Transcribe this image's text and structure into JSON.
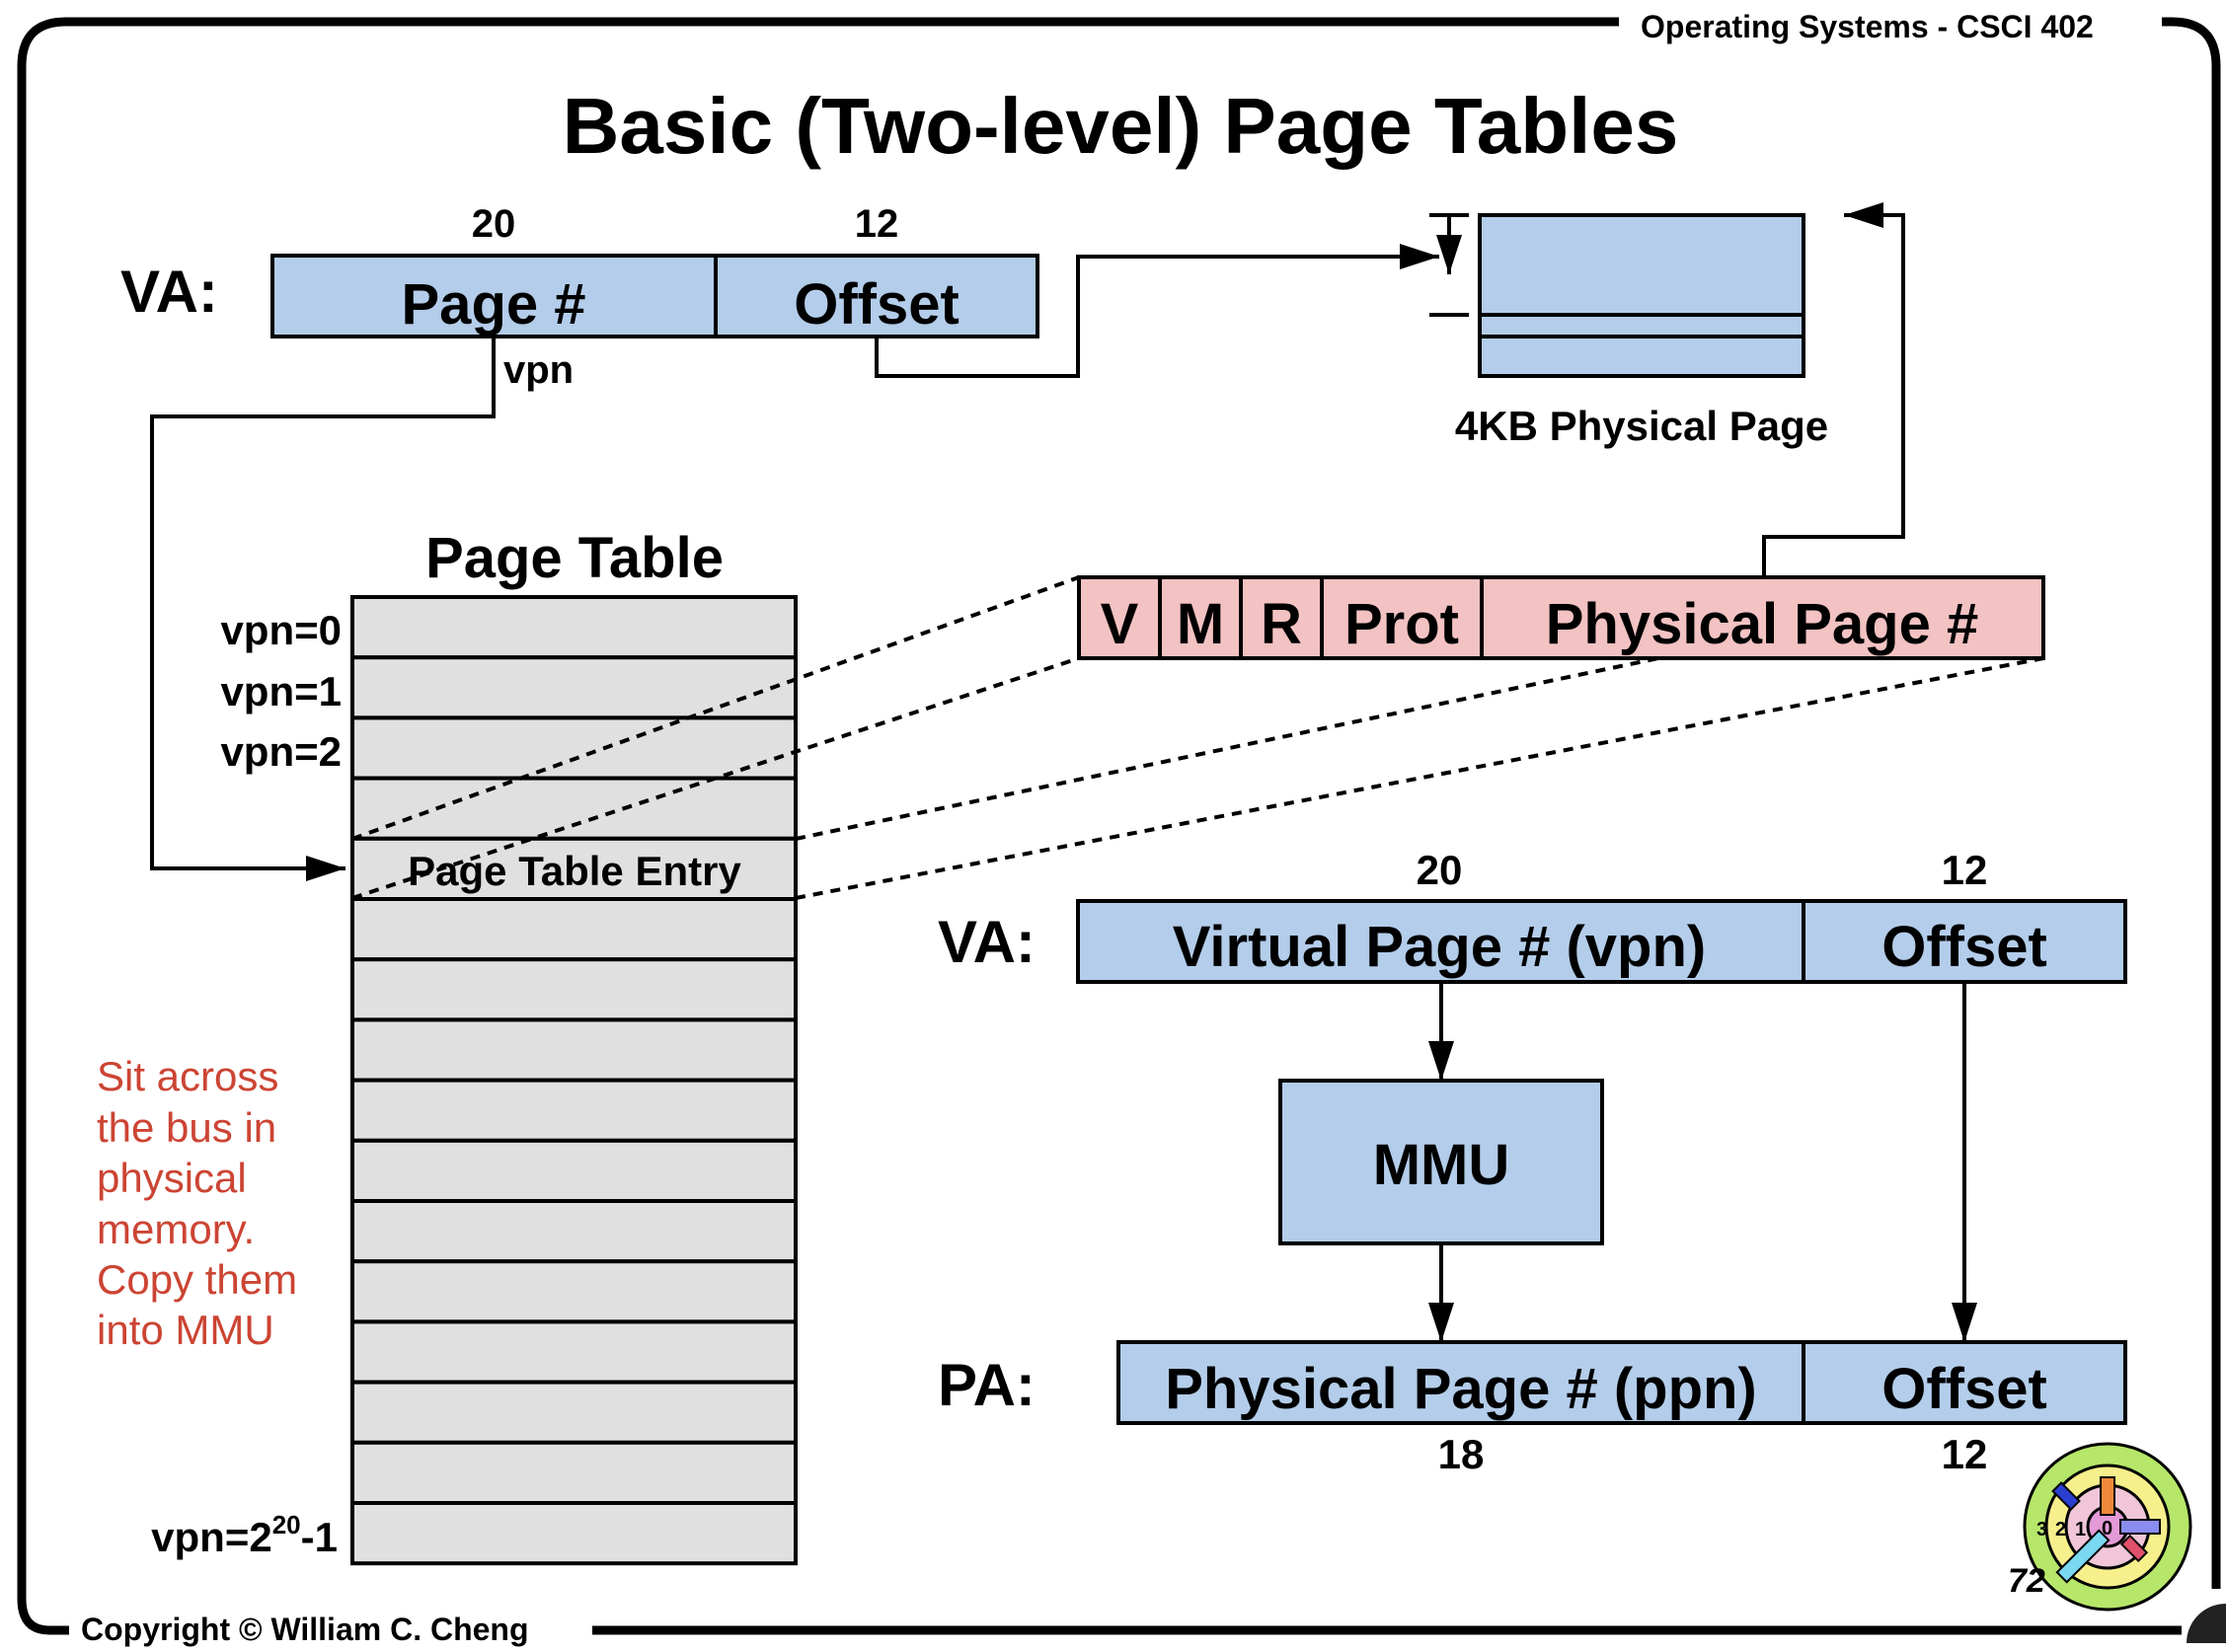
{
  "header": {
    "course": "Operating Systems - CSCI 402",
    "title": "Basic (Two-level) Page Tables",
    "copyright": "Copyright © William C. Cheng",
    "slide_number": "72"
  },
  "top_va": {
    "label": "VA:",
    "page_bits": "20",
    "offset_bits": "12",
    "page_field": "Page #",
    "offset_field": "Offset",
    "vpn_label": "vpn"
  },
  "physical_page": {
    "caption": "4KB Physical Page"
  },
  "page_table": {
    "title": "Page Table",
    "row_labels": [
      "vpn=0",
      "vpn=1",
      "vpn=2"
    ],
    "last_label_base": "vpn=2",
    "last_label_sup": "20",
    "last_label_tail": "-1",
    "entry_label": "Page Table Entry"
  },
  "pte": {
    "fields": [
      "V",
      "M",
      "R",
      "Prot",
      "Physical Page #"
    ]
  },
  "note": {
    "lines": [
      "Sit across",
      "the bus in",
      "physical",
      "memory.",
      "Copy them",
      "into MMU"
    ]
  },
  "translation": {
    "va_label": "VA:",
    "pa_label": "PA:",
    "va_vpn_bits": "20",
    "va_offset_bits": "12",
    "va_vpn_field": "Virtual Page # (vpn)",
    "va_offset_field": "Offset",
    "mmu": "MMU",
    "pa_ppn_field": "Physical Page # (ppn)",
    "pa_offset_field": "Offset",
    "pa_ppn_bits": "18",
    "pa_offset_bits": "12"
  },
  "logo": {
    "ring_labels": [
      "3",
      "2",
      "1",
      "0"
    ]
  },
  "colors": {
    "blue_fill": "#b3cdea",
    "pink_fill": "#f3c2c2",
    "gray_fill": "#e0e0e0",
    "note_red": "#cc4433"
  }
}
